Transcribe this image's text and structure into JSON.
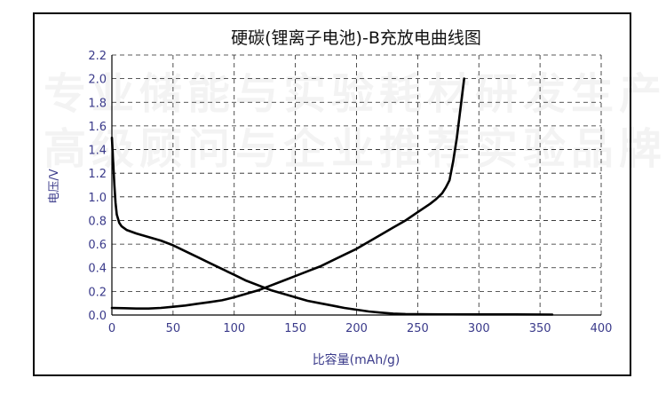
{
  "chart_data": {
    "type": "line",
    "title": "硬碳(锂离子电池)-B充放电曲线图",
    "xlabel": "比容量(mAh/g)",
    "ylabel": "电压/V",
    "xlim": [
      0,
      400
    ],
    "ylim": [
      0,
      2.2
    ],
    "x_ticks": [
      "0",
      "50",
      "100",
      "150",
      "200",
      "250",
      "300",
      "350",
      "400"
    ],
    "y_ticks": [
      "0.0",
      "0.2",
      "0.4",
      "0.6",
      "0.8",
      "1.0",
      "1.2",
      "1.4",
      "1.6",
      "1.8",
      "2.0",
      "2.2"
    ],
    "grid": "dashed",
    "line_color": "#000000",
    "series": [
      {
        "points": [
          [
            0,
            1.5
          ],
          [
            1,
            1.3
          ],
          [
            2,
            1.1
          ],
          [
            3,
            0.95
          ],
          [
            4,
            0.85
          ],
          [
            6,
            0.78
          ],
          [
            8,
            0.75
          ],
          [
            12,
            0.72
          ],
          [
            20,
            0.69
          ],
          [
            30,
            0.66
          ],
          [
            40,
            0.63
          ],
          [
            50,
            0.59
          ],
          [
            60,
            0.54
          ],
          [
            70,
            0.49
          ],
          [
            80,
            0.44
          ],
          [
            90,
            0.39
          ],
          [
            100,
            0.34
          ],
          [
            110,
            0.29
          ],
          [
            120,
            0.25
          ],
          [
            130,
            0.21
          ],
          [
            140,
            0.18
          ],
          [
            150,
            0.15
          ],
          [
            160,
            0.12
          ],
          [
            170,
            0.1
          ],
          [
            180,
            0.08
          ],
          [
            190,
            0.06
          ],
          [
            200,
            0.045
          ],
          [
            210,
            0.03
          ],
          [
            220,
            0.02
          ],
          [
            230,
            0.012
          ],
          [
            240,
            0.008
          ],
          [
            260,
            0.006
          ],
          [
            300,
            0.005
          ],
          [
            330,
            0.005
          ],
          [
            360,
            0.004
          ]
        ]
      },
      {
        "points": [
          [
            0,
            0.06
          ],
          [
            10,
            0.058
          ],
          [
            20,
            0.055
          ],
          [
            30,
            0.055
          ],
          [
            40,
            0.06
          ],
          [
            50,
            0.07
          ],
          [
            60,
            0.08
          ],
          [
            70,
            0.095
          ],
          [
            80,
            0.11
          ],
          [
            90,
            0.125
          ],
          [
            100,
            0.15
          ],
          [
            110,
            0.18
          ],
          [
            120,
            0.21
          ],
          [
            130,
            0.25
          ],
          [
            140,
            0.29
          ],
          [
            150,
            0.33
          ],
          [
            160,
            0.37
          ],
          [
            170,
            0.41
          ],
          [
            180,
            0.46
          ],
          [
            190,
            0.51
          ],
          [
            200,
            0.56
          ],
          [
            210,
            0.62
          ],
          [
            220,
            0.68
          ],
          [
            230,
            0.74
          ],
          [
            240,
            0.8
          ],
          [
            250,
            0.87
          ],
          [
            260,
            0.94
          ],
          [
            265,
            0.98
          ],
          [
            270,
            1.03
          ],
          [
            273,
            1.08
          ],
          [
            276,
            1.14
          ],
          [
            279,
            1.3
          ],
          [
            282,
            1.5
          ],
          [
            285,
            1.75
          ],
          [
            288,
            2.0
          ]
        ]
      }
    ]
  },
  "watermark": [
    "专业储能与实验耗材研发生产",
    "高级顾问与企业推荐实验品牌"
  ]
}
